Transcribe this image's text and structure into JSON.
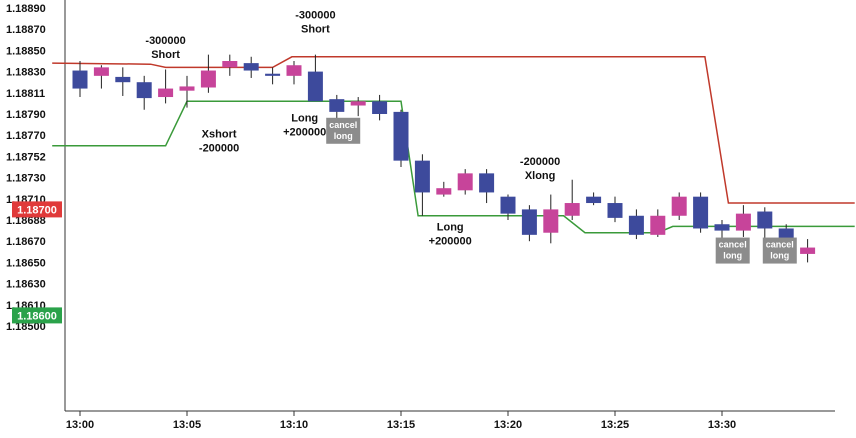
{
  "chart_data": {
    "type": "candlestick",
    "y_ticks": [
      "1.18890",
      "1.18870",
      "1.18850",
      "1.18830",
      "1.18811",
      "1.18790",
      "1.18770",
      "1.18752",
      "1.18730",
      "1.18710",
      "1.18688",
      "1.18670",
      "1.18650",
      "1.18630",
      "1.18610",
      "1.18500"
    ],
    "x_ticks": [
      "13:00",
      "13:05",
      "13:10",
      "13:15",
      "13:20",
      "13:25",
      "13:30"
    ],
    "ylim": [
      1.1849,
      1.1889
    ],
    "price_badges": [
      {
        "label": "1.18700",
        "value": 1.187,
        "color": "#e03a3a"
      },
      {
        "label": "1.18600",
        "value": 1.186,
        "color": "#2aa24a"
      }
    ],
    "candles": [
      {
        "t": 0,
        "o": 1.18831,
        "h": 1.1884,
        "l": 1.18806,
        "c": 1.18814
      },
      {
        "t": 1,
        "o": 1.18826,
        "h": 1.18836,
        "l": 1.18814,
        "c": 1.18834
      },
      {
        "t": 2,
        "o": 1.18825,
        "h": 1.18834,
        "l": 1.18807,
        "c": 1.1882
      },
      {
        "t": 3,
        "o": 1.1882,
        "h": 1.18826,
        "l": 1.18794,
        "c": 1.18805
      },
      {
        "t": 4,
        "o": 1.18806,
        "h": 1.18832,
        "l": 1.188,
        "c": 1.18814
      },
      {
        "t": 5,
        "o": 1.18812,
        "h": 1.18826,
        "l": 1.18796,
        "c": 1.18816
      },
      {
        "t": 6,
        "o": 1.18815,
        "h": 1.18846,
        "l": 1.1881,
        "c": 1.18831
      },
      {
        "t": 7,
        "o": 1.18834,
        "h": 1.18846,
        "l": 1.18826,
        "c": 1.1884
      },
      {
        "t": 8,
        "o": 1.18838,
        "h": 1.18844,
        "l": 1.18824,
        "c": 1.18831
      },
      {
        "t": 9,
        "o": 1.18828,
        "h": 1.18834,
        "l": 1.18818,
        "c": 1.18826
      },
      {
        "t": 10,
        "o": 1.18826,
        "h": 1.1884,
        "l": 1.18818,
        "c": 1.18836
      },
      {
        "t": 11,
        "o": 1.1883,
        "h": 1.18846,
        "l": 1.18804,
        "c": 1.18802
      },
      {
        "t": 12,
        "o": 1.18804,
        "h": 1.18808,
        "l": 1.18784,
        "c": 1.18792
      },
      {
        "t": 13,
        "o": 1.18798,
        "h": 1.18806,
        "l": 1.18788,
        "c": 1.18802
      },
      {
        "t": 14,
        "o": 1.18802,
        "h": 1.18808,
        "l": 1.18784,
        "c": 1.1879
      },
      {
        "t": 15,
        "o": 1.18792,
        "h": 1.18794,
        "l": 1.1874,
        "c": 1.18746
      },
      {
        "t": 16,
        "o": 1.18746,
        "h": 1.18752,
        "l": 1.18694,
        "c": 1.18716
      },
      {
        "t": 17,
        "o": 1.18714,
        "h": 1.18726,
        "l": 1.18712,
        "c": 1.1872
      },
      {
        "t": 18,
        "o": 1.18718,
        "h": 1.18738,
        "l": 1.18714,
        "c": 1.18734
      },
      {
        "t": 19,
        "o": 1.18734,
        "h": 1.18738,
        "l": 1.18706,
        "c": 1.18716
      },
      {
        "t": 20,
        "o": 1.18712,
        "h": 1.18714,
        "l": 1.1869,
        "c": 1.18696
      },
      {
        "t": 21,
        "o": 1.187,
        "h": 1.18704,
        "l": 1.1867,
        "c": 1.18676
      },
      {
        "t": 22,
        "o": 1.18678,
        "h": 1.18714,
        "l": 1.18668,
        "c": 1.187
      },
      {
        "t": 23,
        "o": 1.18694,
        "h": 1.18728,
        "l": 1.1869,
        "c": 1.18706
      },
      {
        "t": 24,
        "o": 1.18712,
        "h": 1.18716,
        "l": 1.18704,
        "c": 1.18706
      },
      {
        "t": 25,
        "o": 1.18706,
        "h": 1.18712,
        "l": 1.18688,
        "c": 1.18692
      },
      {
        "t": 26,
        "o": 1.18694,
        "h": 1.187,
        "l": 1.18672,
        "c": 1.18676
      },
      {
        "t": 27,
        "o": 1.18676,
        "h": 1.187,
        "l": 1.18674,
        "c": 1.18694
      },
      {
        "t": 28,
        "o": 1.18694,
        "h": 1.18716,
        "l": 1.1869,
        "c": 1.18712
      },
      {
        "t": 29,
        "o": 1.18712,
        "h": 1.18716,
        "l": 1.18678,
        "c": 1.18682
      },
      {
        "t": 30,
        "o": 1.18686,
        "h": 1.1869,
        "l": 1.18672,
        "c": 1.1868
      },
      {
        "t": 31,
        "o": 1.1868,
        "h": 1.18704,
        "l": 1.18674,
        "c": 1.18696
      },
      {
        "t": 32,
        "o": 1.18698,
        "h": 1.18702,
        "l": 1.1867,
        "c": 1.18682
      },
      {
        "t": 33,
        "o": 1.18682,
        "h": 1.18686,
        "l": 1.18656,
        "c": 1.1866
      },
      {
        "t": 34,
        "o": 1.18658,
        "h": 1.18672,
        "l": 1.1865,
        "c": 1.18664
      }
    ],
    "bull_color": "#c7449a",
    "bear_color": "#3d4a9c",
    "lines": [
      {
        "color": "#c0392b",
        "points": [
          [
            -1.3,
            1.18838
          ],
          [
            3.3,
            1.18837
          ],
          [
            4.0,
            1.18834
          ],
          [
            9.0,
            1.18834
          ],
          [
            9.9,
            1.18844
          ],
          [
            29.2,
            1.18844
          ],
          [
            30.3,
            1.18706
          ],
          [
            36.2,
            1.18706
          ]
        ]
      },
      {
        "color": "#3a9a3a",
        "points": [
          [
            -1.3,
            1.1876
          ],
          [
            4.0,
            1.1876
          ],
          [
            5.0,
            1.18802
          ],
          [
            15.0,
            1.18802
          ],
          [
            15.8,
            1.18694
          ],
          [
            22.6,
            1.18694
          ],
          [
            23.6,
            1.18678
          ],
          [
            27.0,
            1.18678
          ],
          [
            27.7,
            1.18684
          ],
          [
            36.2,
            1.18684
          ]
        ]
      }
    ],
    "annotations": [
      {
        "lines": [
          "-300000",
          "Short"
        ],
        "t": 4.0,
        "y": 1.18856
      },
      {
        "lines": [
          "-300000",
          "Short"
        ],
        "t": 11.0,
        "y": 1.1888
      },
      {
        "lines": [
          "Long",
          "+200000"
        ],
        "t": 10.5,
        "y": 1.18783
      },
      {
        "lines": [
          "Xshort",
          "-200000"
        ],
        "t": 6.5,
        "y": 1.18768
      },
      {
        "lines": [
          "-200000",
          "Xlong"
        ],
        "t": 21.5,
        "y": 1.18742
      },
      {
        "lines": [
          "Long",
          "+200000"
        ],
        "t": 17.3,
        "y": 1.1868
      }
    ],
    "cancel_labels": [
      {
        "lines": [
          "cancel",
          "long"
        ],
        "t": 12.3,
        "y": 1.18777
      },
      {
        "lines": [
          "cancel",
          "long"
        ],
        "t": 30.5,
        "y": 1.18664
      },
      {
        "lines": [
          "cancel",
          "long"
        ],
        "t": 32.7,
        "y": 1.18664
      }
    ]
  }
}
